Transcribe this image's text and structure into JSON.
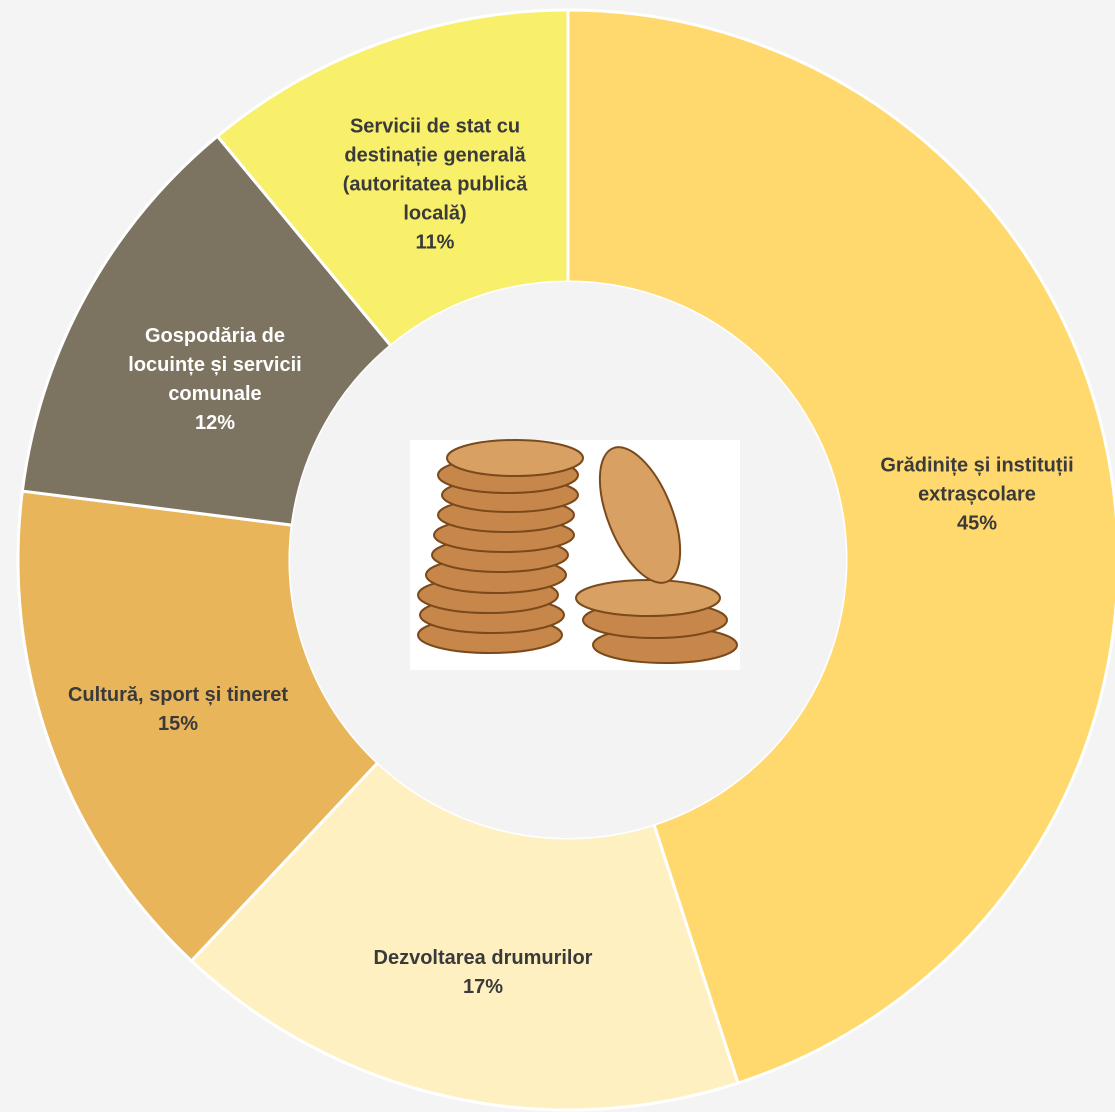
{
  "chart_data": {
    "type": "donut",
    "categories": [
      "Grădinițe și instituții extrașcolare",
      "Dezvoltarea drumurilor",
      "Cultură, sport și tineret",
      "Gospodăria de locuințe și servicii comunale",
      "Servicii de stat cu destinație generală (autoritatea publică locală)"
    ],
    "values": [
      45,
      17,
      15,
      12,
      11
    ],
    "value_labels": [
      "45%",
      "17%",
      "15%",
      "12%",
      "11%"
    ],
    "colors": [
      "#ffd96e",
      "#fff0c2",
      "#e8b55a",
      "#7d7361",
      "#f8ef6b"
    ]
  }
}
